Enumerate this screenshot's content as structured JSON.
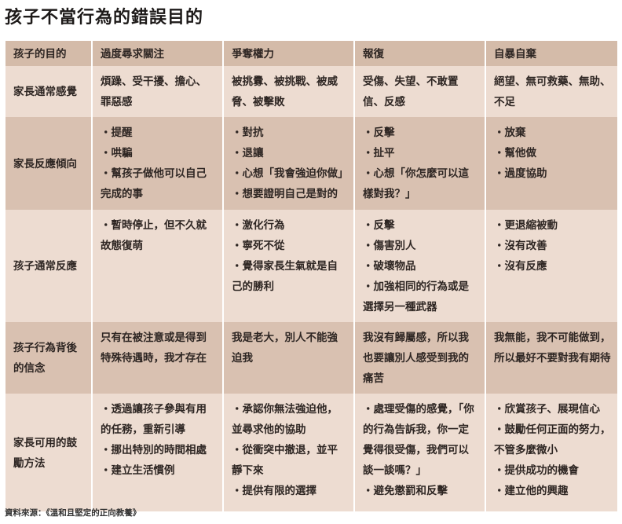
{
  "title": "孩子不當行為的錯誤目的",
  "table": {
    "header": [
      "孩子的目的",
      "過度尋求關注",
      "爭奪權力",
      "報復",
      "自暴自棄"
    ],
    "rows": [
      {
        "label": "家長通常感覺",
        "shade": "light",
        "cells": [
          {
            "text": "煩躁、受干擾、擔心、罪惡感"
          },
          {
            "text": "被挑釁、被挑戰、被威脅、被擊敗"
          },
          {
            "text": "受傷、失望、不敢置信、反感"
          },
          {
            "text": "絕望、無可救藥、無助、不足"
          }
        ]
      },
      {
        "label": "家長反應傾向",
        "shade": "dark",
        "cells": [
          {
            "items": [
              "・提醒",
              "・哄騙",
              "・幫孩子做他可以自己完成的事"
            ]
          },
          {
            "items": [
              "・對抗",
              "・退讓",
              "・心想「我會強迫你做」",
              "・想要證明自己是對的"
            ]
          },
          {
            "items": [
              "・反擊",
              "・扯平",
              "・心想「你怎麼可以這樣對我？」"
            ]
          },
          {
            "items": [
              "・放棄",
              "・幫他做",
              "・過度協助"
            ]
          }
        ]
      },
      {
        "label": "孩子通常反應",
        "shade": "light",
        "cells": [
          {
            "items": [
              "・暫時停止，但不久就故態復萌"
            ]
          },
          {
            "items": [
              "・激化行為",
              "・寧死不從",
              "・覺得家長生氣就是自己的勝利"
            ]
          },
          {
            "items": [
              "・反擊",
              "・傷害別人",
              "・破壞物品",
              "・加強相同的行為或是選擇另一種武器"
            ]
          },
          {
            "items": [
              "・更退縮被動",
              "・沒有改善",
              "・沒有反應"
            ]
          }
        ]
      },
      {
        "label": "孩子行為背後的信念",
        "shade": "dark",
        "cells": [
          {
            "text": "只有在被注意或是得到特殊待遇時，我才存在"
          },
          {
            "text": "我是老大，別人不能強迫我"
          },
          {
            "text": "我沒有歸屬感，所以我也要讓別人感受到我的痛苦"
          },
          {
            "text": "我無能，我不可能做到，所以最好不要對我有期待"
          }
        ]
      },
      {
        "label": "家長可用的鼓勵方法",
        "shade": "light",
        "cells": [
          {
            "items": [
              "・透過讓孩子參與有用的任務，重新引導",
              "・挪出特別的時間相處",
              "・建立生活慣例"
            ]
          },
          {
            "items": [
              "・承認你無法強迫他，並尋求他的協助",
              "・從衝突中撤退，並平靜下來",
              "・提供有限的選擇"
            ]
          },
          {
            "items": [
              "・處理受傷的感覺，「你的行為告訴我，你一定覺得很受傷，我們可以談一談嗎？」",
              "・避免懲罰和反擊"
            ]
          },
          {
            "items": [
              "・欣賞孩子、展現信心",
              "・鼓勵任何正面的努力，不管多麼微小",
              "・提供成功的機會",
              "・建立他的興趣"
            ]
          }
        ]
      }
    ]
  },
  "source": "資料來源：《溫和且堅定的正向教養》",
  "colors": {
    "header": "#d4bba9",
    "dark_row": "#d9c1b1",
    "light_row": "#eddcd1"
  }
}
